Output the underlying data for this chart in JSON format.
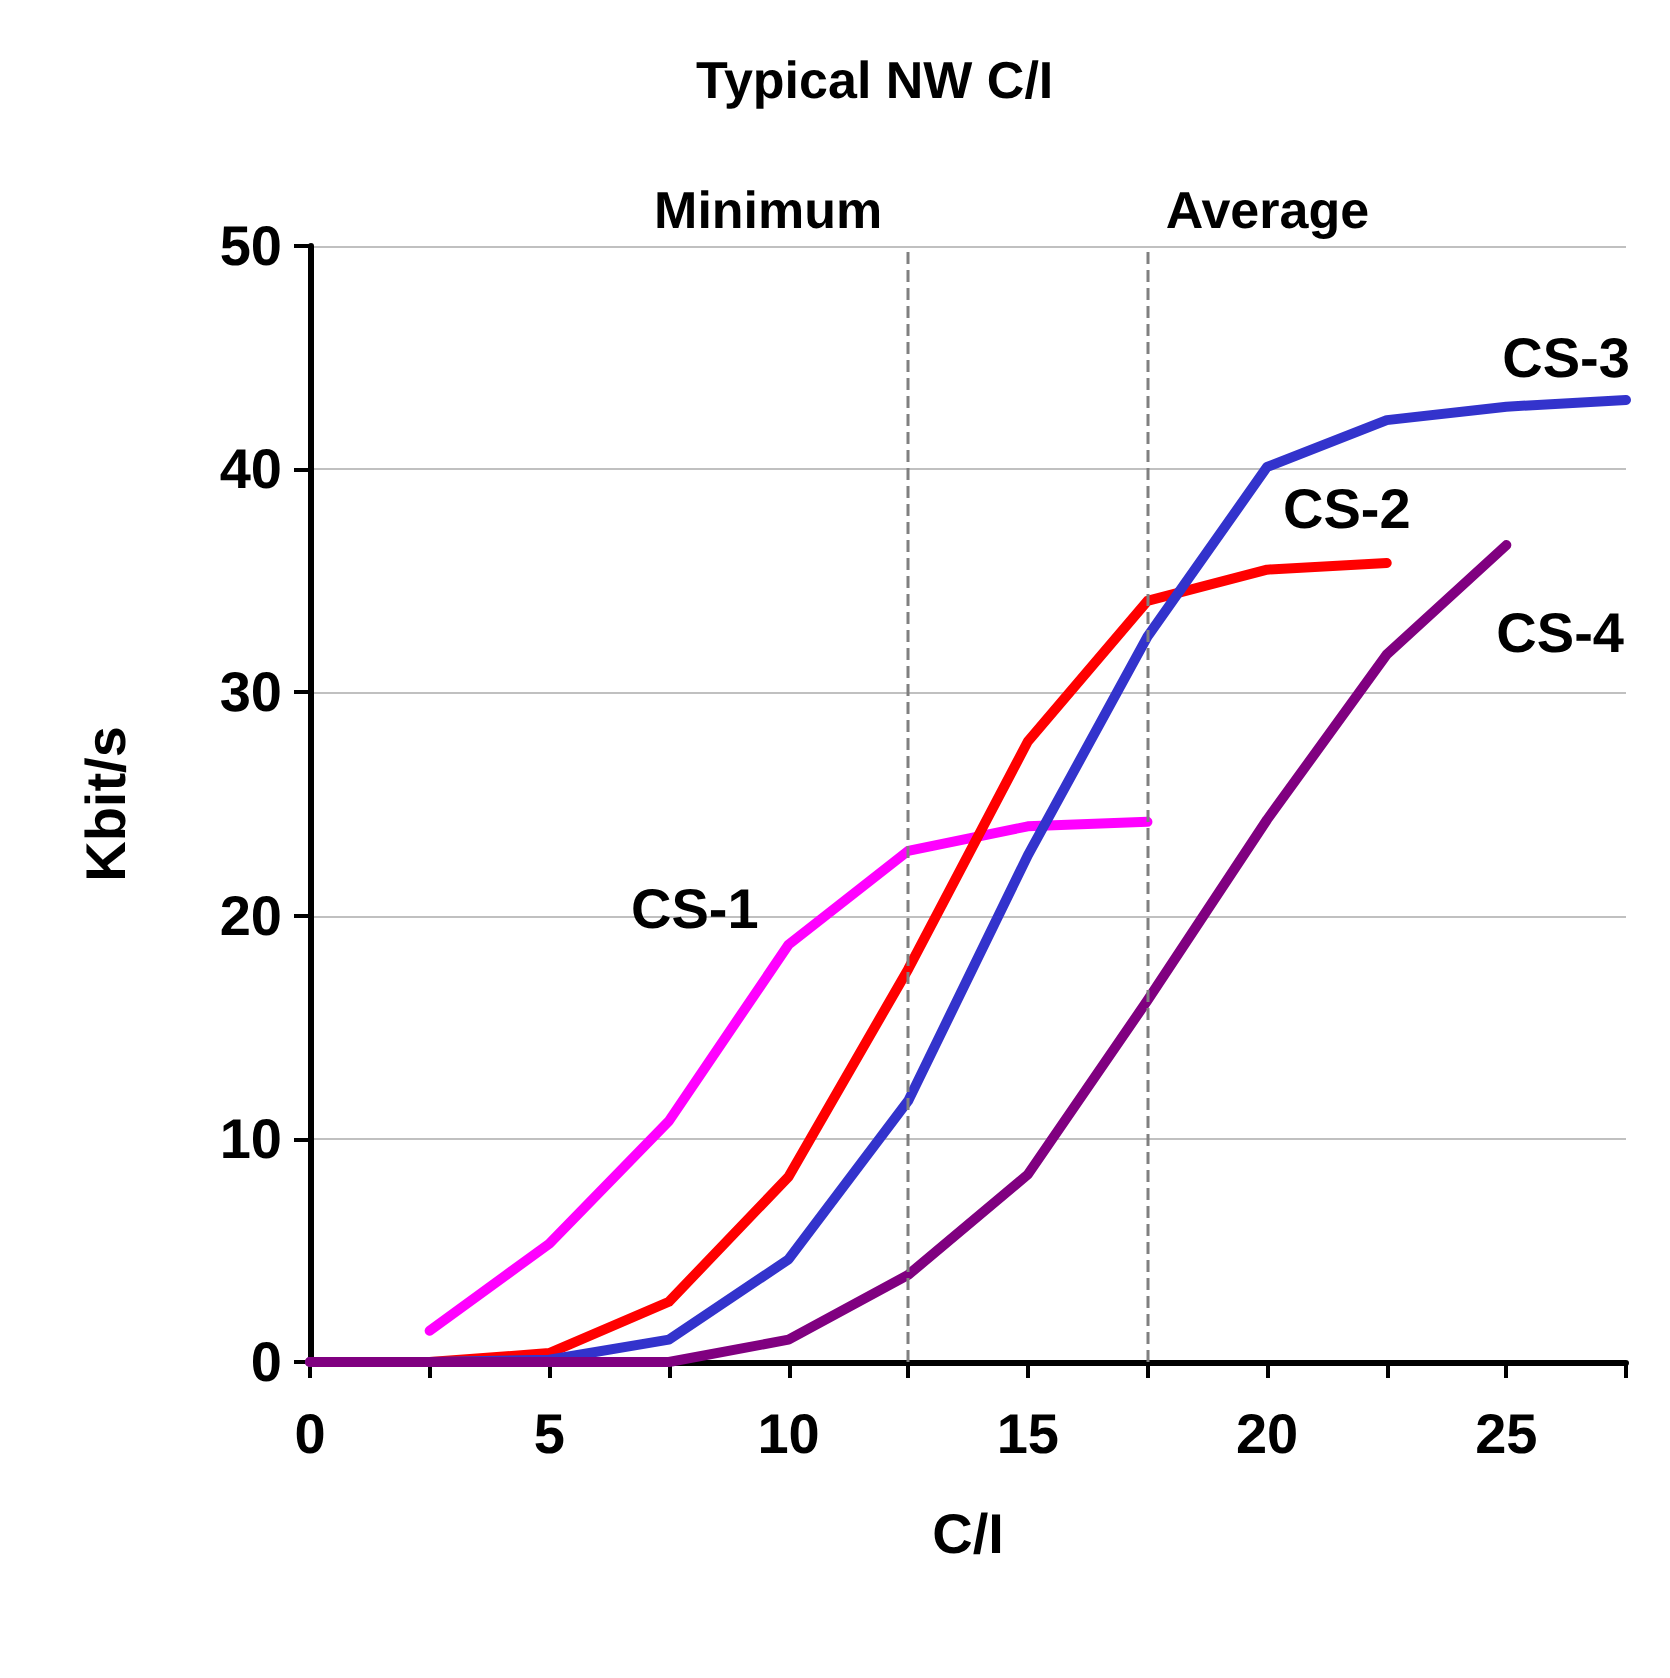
{
  "chart_data": {
    "type": "line",
    "title": "Typical NW C/I",
    "xlabel": "C/I",
    "ylabel": "Kbit/s",
    "xlim": [
      0,
      27.5
    ],
    "xticks": [
      0,
      {
        "value": 2.5,
        "label": null
      },
      5,
      {
        "value": 7.5,
        "label": null
      },
      10,
      {
        "value": 12.5,
        "label": null
      },
      15,
      {
        "value": 17.5,
        "label": null
      },
      20,
      {
        "value": 22.5,
        "label": null
      },
      25,
      {
        "value": 27.5,
        "label": null
      }
    ],
    "ylim": [
      0,
      50
    ],
    "yticks": [
      0,
      10,
      20,
      30,
      40,
      50
    ],
    "grid": "y",
    "legend": false,
    "marker": "none",
    "line_style": "solid",
    "series": [
      {
        "name": "CS-1",
        "color": "#ff00ff",
        "x": [
          2.5,
          5,
          7.5,
          10,
          12.5,
          15,
          17.5
        ],
        "values": [
          1.4,
          5.3,
          10.8,
          18.7,
          22.9,
          24.0,
          24.2
        ]
      },
      {
        "name": "CS-2",
        "color": "#ff0000",
        "x": [
          0,
          2.5,
          5,
          7.5,
          10,
          12.5,
          15,
          17.5,
          20,
          22.5
        ],
        "values": [
          0,
          0,
          0.4,
          2.7,
          8.3,
          17.6,
          27.8,
          34.1,
          35.5,
          35.8
        ]
      },
      {
        "name": "CS-3",
        "color": "#3333cc",
        "x": [
          0,
          2.5,
          5,
          7.5,
          10,
          12.5,
          15,
          17.5,
          20,
          22.5,
          25,
          27.5
        ],
        "values": [
          0,
          0,
          0.1,
          1.0,
          4.6,
          11.7,
          22.7,
          32.5,
          40.1,
          42.2,
          42.8,
          43.1
        ]
      },
      {
        "name": "CS-4",
        "color": "#800080",
        "x": [
          0,
          2.5,
          5,
          7.5,
          10,
          12.5,
          15,
          17.5,
          20,
          22.5,
          25
        ],
        "values": [
          0,
          0,
          0,
          0,
          1.0,
          3.9,
          8.4,
          16.2,
          24.3,
          31.7,
          36.6
        ]
      }
    ],
    "ref_lines": [
      {
        "axis": "x",
        "value": 12.5,
        "label": "Minimum",
        "color": "#808080",
        "line_style": "dashed"
      },
      {
        "axis": "x",
        "value": 17.5,
        "label": "Average",
        "color": "#808080",
        "line_style": "dashed"
      }
    ]
  }
}
